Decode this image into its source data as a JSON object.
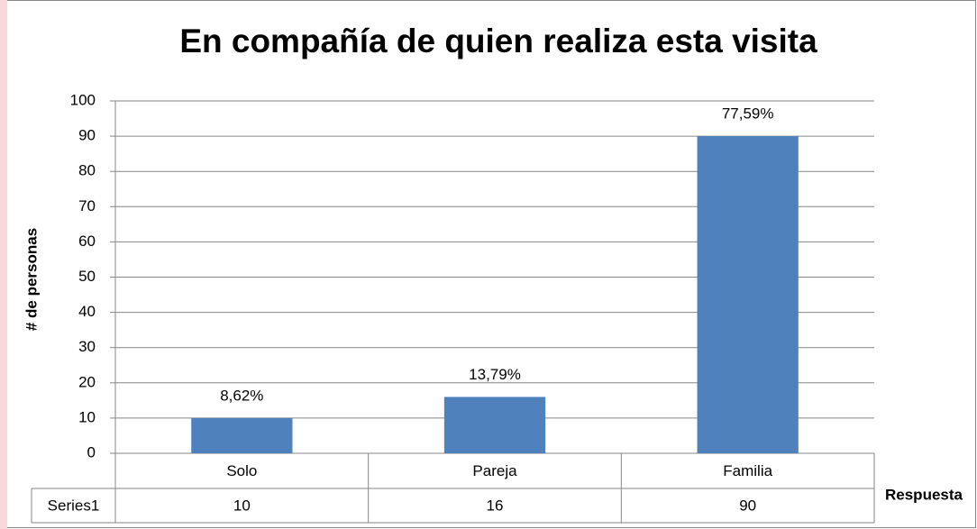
{
  "chart_data": {
    "type": "bar",
    "title": "En compañía de quien realiza esta visita",
    "y_label": "# de personas",
    "x_label": "Respuesta",
    "categories": [
      "Solo",
      "Pareja",
      "Familia"
    ],
    "series": [
      {
        "name": "Series1",
        "color": "#4f81bd",
        "values": [
          10,
          16,
          90
        ]
      }
    ],
    "data_labels": [
      "8,62%",
      "13,79%",
      "77,59%"
    ],
    "ylim": [
      0,
      100
    ],
    "yticks": [
      0,
      10,
      20,
      30,
      40,
      50,
      60,
      70,
      80,
      90,
      100
    ],
    "grid": true
  }
}
